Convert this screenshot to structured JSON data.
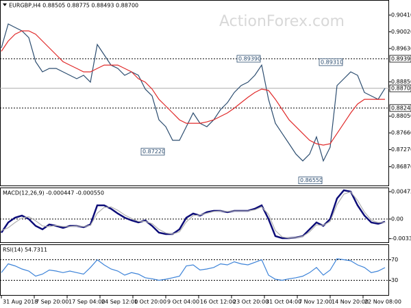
{
  "chart_data": [
    {
      "type": "line",
      "title": "EURGBP,H4 0.88505 0.88775 0.88493 0.88700",
      "watermark": "ActionForex.com",
      "x": [
        0,
        1,
        2,
        3,
        4,
        5,
        6,
        7,
        8,
        9,
        10,
        11,
        12,
        13,
        14,
        15,
        16,
        17,
        18,
        19,
        20,
        21,
        22,
        23,
        24,
        25,
        26,
        27,
        28,
        29,
        30,
        31,
        32,
        33,
        34,
        35,
        36,
        37,
        38,
        39,
        40,
        41,
        42,
        43,
        44,
        45,
        46,
        47,
        48,
        49,
        50,
        51,
        52,
        53,
        54,
        55,
        56
      ],
      "xlim": [
        -0.2,
        56.6
      ],
      "series": [
        {
          "color": "#2b4c6f",
          "values": [
            0.89643,
            0.90202,
            0.90122,
            0.90042,
            0.89883,
            0.89323,
            0.89084,
            0.89164,
            0.89164,
            0.89084,
            0.89004,
            0.88924,
            0.89004,
            0.88844,
            0.89723,
            0.89483,
            0.89243,
            0.89164,
            0.89004,
            0.89084,
            0.89004,
            0.88684,
            0.88524,
            0.87965,
            0.87805,
            0.87486,
            0.87486,
            0.87805,
            0.88125,
            0.87885,
            0.87805,
            0.87965,
            0.88205,
            0.88365,
            0.88604,
            0.88764,
            0.88844,
            0.89004,
            0.89243,
            0.88444,
            0.87885,
            0.87645,
            0.87406,
            0.87166,
            0.87006,
            0.87166,
            0.87566,
            0.87006,
            0.87326,
            0.88764,
            0.88924,
            0.89084,
            0.89004,
            0.88604,
            0.88524,
            0.88444,
            0.887
          ]
        },
        {
          "color": "#e02828",
          "values": [
            0.89563,
            0.89803,
            0.89963,
            0.90042,
            0.90042,
            0.89963,
            0.89803,
            0.89643,
            0.89483,
            0.89323,
            0.89243,
            0.89164,
            0.89084,
            0.89084,
            0.89164,
            0.89243,
            0.89243,
            0.89243,
            0.89164,
            0.89084,
            0.88924,
            0.88844,
            0.88684,
            0.88444,
            0.88285,
            0.88125,
            0.87965,
            0.87885,
            0.87885,
            0.87885,
            0.87917,
            0.87965,
            0.88045,
            0.88125,
            0.88237,
            0.88365,
            0.88492,
            0.88604,
            0.88684,
            0.88652,
            0.88444,
            0.88205,
            0.87965,
            0.87805,
            0.87645,
            0.87486,
            0.87406,
            0.87374,
            0.87406,
            0.87645,
            0.87885,
            0.88125,
            0.88333,
            0.88444,
            0.88444,
            0.88444,
            0.88444
          ]
        }
      ],
      "ylim": [
        0.86416,
        0.90762
      ],
      "yticks": [
        {
          "value": 0.9041,
          "label": "0.90410"
        },
        {
          "value": 0.9002,
          "label": "0.90020"
        },
        {
          "value": 0.8963,
          "label": "0.89630"
        },
        {
          "value": 0.8885,
          "label": "0.88850"
        },
        {
          "value": 0.8805,
          "label": "0.88050"
        },
        {
          "value": 0.8766,
          "label": "0.87660"
        },
        {
          "value": 0.8727,
          "label": "0.87270"
        },
        {
          "value": 0.8687,
          "label": "0.86870"
        }
      ],
      "levels": [
        {
          "value": 0.8939,
          "label": "0.89390",
          "dashed": true
        },
        {
          "value": 0.887,
          "label": "0.88700",
          "dashed": false
        },
        {
          "value": 0.8824,
          "label": "0.88240",
          "dashed": true
        }
      ],
      "annotations": [
        {
          "x": 38,
          "value": 0.8939,
          "label": "0.89390"
        },
        {
          "x": 50,
          "value": 0.8931,
          "label": "0.89310"
        },
        {
          "x": 24,
          "value": 0.8722,
          "label": "0.87220"
        },
        {
          "x": 47,
          "value": 0.8655,
          "label": "0.86550"
        }
      ]
    },
    {
      "type": "line",
      "title": "MACD(12,26,9) -0.000447 -0.000550",
      "x": [
        0,
        1,
        2,
        3,
        4,
        5,
        6,
        7,
        8,
        9,
        10,
        11,
        12,
        13,
        14,
        15,
        16,
        17,
        18,
        19,
        20,
        21,
        22,
        23,
        24,
        25,
        26,
        27,
        28,
        29,
        30,
        31,
        32,
        33,
        34,
        35,
        36,
        37,
        38,
        39,
        40,
        41,
        42,
        43,
        44,
        45,
        46,
        47,
        48,
        49,
        50,
        51,
        52,
        53,
        54,
        55,
        56
      ],
      "xlim": [
        -0.2,
        56.6
      ],
      "series": [
        {
          "color": "#0c0c78",
          "values": [
            -0.00236,
            -0.00059,
            0.00024,
            0.00059,
            0,
            -0.00118,
            -0.00177,
            -0.00095,
            -0.00118,
            -0.00154,
            -0.00118,
            -0.00118,
            -0.00142,
            -0.00095,
            0.00236,
            0.00236,
            0.00177,
            0.00095,
            0.00024,
            -0.00024,
            -0.00059,
            -0.00024,
            -0.00118,
            -0.00236,
            -0.0026,
            -0.0026,
            -0.00177,
            0.00024,
            0.00095,
            0.00059,
            0.00118,
            0.00142,
            0.00142,
            0.00118,
            0.00142,
            0.00142,
            0.00142,
            0.00177,
            0.00236,
            0,
            -0.00296,
            -0.00331,
            -0.00331,
            -0.00319,
            -0.00296,
            -0.00177,
            -0.00059,
            -0.00118,
            0,
            0.00355,
            0.00497,
            0.00473,
            0.00236,
            0.00059,
            -0.00059,
            -0.00083,
            -0.00045
          ]
        },
        {
          "color": "#b0b0b0",
          "values": [
            -0.002,
            -0.0015,
            -0.0006,
            0.0002,
            0.0004,
            -0.0003,
            -0.0012,
            -0.0013,
            -0.0011,
            -0.0013,
            -0.0013,
            -0.0012,
            -0.0013,
            -0.0011,
            0.001,
            0.002,
            0.0021,
            0.0015,
            0.0007,
            0.0001,
            -0.0004,
            -0.0004,
            -0.0008,
            -0.0018,
            -0.0024,
            -0.0026,
            -0.0022,
            -0.0005,
            0.0006,
            0.0007,
            0.001,
            0.0013,
            0.0014,
            0.0013,
            0.0014,
            0.0014,
            0.0014,
            0.0016,
            0.0021,
            0.0008,
            -0.002,
            -0.0031,
            -0.0033,
            -0.0032,
            -0.003,
            -0.0022,
            -0.001,
            -0.0011,
            -0.0004,
            0.0025,
            0.0043,
            0.0047,
            0.0032,
            0.0012,
            -0.0002,
            -0.0006,
            -0.00055
          ]
        }
      ],
      "ylim": [
        -0.00414,
        0.00544
      ],
      "yticks": [
        0.004729,
        {
          "value": 0,
          "label": "0.00"
        },
        -0.003391
      ],
      "levels": [
        {
          "value": 0,
          "dashed": true
        }
      ]
    },
    {
      "type": "line",
      "title": "RSI(14) 54.7311",
      "x": [
        0,
        1,
        2,
        3,
        4,
        5,
        6,
        7,
        8,
        9,
        10,
        11,
        12,
        13,
        14,
        15,
        16,
        17,
        18,
        19,
        20,
        21,
        22,
        23,
        24,
        25,
        26,
        27,
        28,
        29,
        30,
        31,
        32,
        33,
        34,
        35,
        36,
        37,
        38,
        39,
        40,
        41,
        42,
        43,
        44,
        45,
        46,
        47,
        48,
        49,
        50,
        51,
        52,
        53,
        54,
        55,
        56
      ],
      "xlim": [
        -0.2,
        56.6
      ],
      "series": [
        {
          "color": "#3b82d8",
          "values": [
            45,
            62,
            58,
            52,
            48,
            38,
            42,
            50,
            48,
            45,
            48,
            45,
            42,
            55,
            70,
            60,
            52,
            48,
            40,
            45,
            42,
            35,
            33,
            30,
            32,
            35,
            38,
            58,
            60,
            50,
            52,
            55,
            62,
            60,
            66,
            62,
            60,
            65,
            70,
            40,
            32,
            30,
            33,
            35,
            38,
            45,
            55,
            40,
            50,
            72,
            70,
            68,
            60,
            55,
            45,
            48,
            54.73
          ]
        }
      ],
      "ylim": [
        0,
        100
      ],
      "yticks": [
        70,
        30
      ],
      "levels": [
        {
          "value": 70,
          "dashed": true
        },
        {
          "value": 30,
          "dashed": true
        }
      ],
      "xticks": [
        {
          "value": 0,
          "label": "31 Aug 2018"
        },
        {
          "value": 4.8,
          "label": "7 Sep 20:00"
        },
        {
          "value": 9.6,
          "label": "17 Sep 04:00"
        },
        {
          "value": 14.4,
          "label": "24 Sep 12:00"
        },
        {
          "value": 19.2,
          "label": "1 Oct 20:00"
        },
        {
          "value": 24,
          "label": "9 Oct 04:00"
        },
        {
          "value": 28.8,
          "label": "16 Oct 12:00"
        },
        {
          "value": 33.6,
          "label": "23 Oct 20:00"
        },
        {
          "value": 38.4,
          "label": "31 Oct 04:00"
        },
        {
          "value": 43.2,
          "label": "7 Nov 12:00"
        },
        {
          "value": 48,
          "label": "14 Nov 20:00"
        },
        {
          "value": 52.8,
          "label": "22 Nov 08:00"
        }
      ]
    }
  ]
}
